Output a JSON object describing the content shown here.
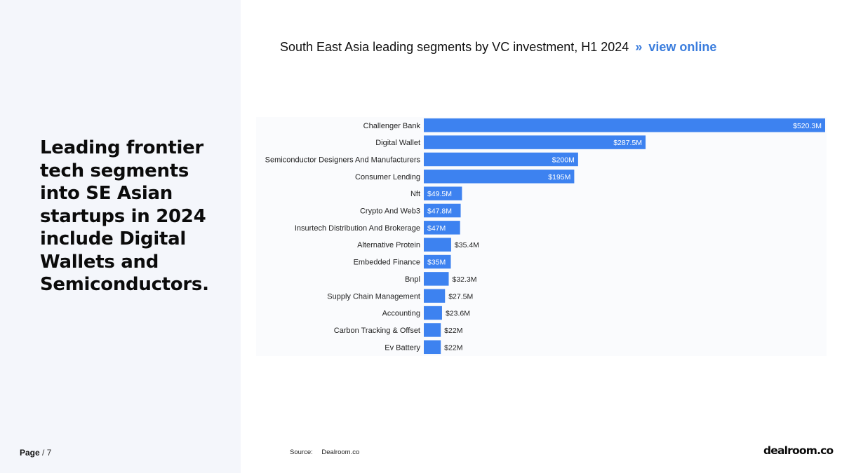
{
  "headline": "Leading frontier tech segments into SE Asian startups in 2024 include Digital Wallets and Semiconductors.",
  "page": {
    "label": "Page",
    "separator": "/",
    "number": "7"
  },
  "chart_title": {
    "text": "South East Asia leading segments by VC investment, H1 2024",
    "separator": "»",
    "link": "view online"
  },
  "source": {
    "label": "Source:",
    "value": "Dealroom.co"
  },
  "logo": "dealroom.co",
  "colors": {
    "bar": "#3d82f0",
    "link": "#3b7ddd",
    "sidebar": "#f4f6fb"
  },
  "chart_data": {
    "type": "bar",
    "orientation": "horizontal",
    "title": "South East Asia leading segments by VC investment, H1 2024",
    "xlabel": "",
    "ylabel": "",
    "xlim": [
      0,
      520.3
    ],
    "grid": false,
    "legend": "none",
    "categories": [
      "Challenger Bank",
      "Digital Wallet",
      "Semiconductor Designers And Manufacturers",
      "Consumer Lending",
      "Nft",
      "Crypto And Web3",
      "Insurtech Distribution And Brokerage",
      "Alternative Protein",
      "Embedded Finance",
      "Bnpl",
      "Supply Chain Management",
      "Accounting",
      "Carbon Tracking & Offset",
      "Ev Battery"
    ],
    "values": [
      520.3,
      287.5,
      200,
      195,
      49.5,
      47.8,
      47,
      35.4,
      35,
      32.3,
      27.5,
      23.6,
      22,
      22
    ],
    "labels": [
      "$520.3M",
      "$287.5M",
      "$200M",
      "$195M",
      "$49.5M",
      "$47.8M",
      "$47M",
      "$35.4M",
      "$35M",
      "$32.3M",
      "$27.5M",
      "$23.6M",
      "$22M",
      "$22M"
    ],
    "label_inside": [
      true,
      true,
      true,
      true,
      true,
      true,
      true,
      false,
      true,
      false,
      false,
      false,
      false,
      false
    ]
  }
}
